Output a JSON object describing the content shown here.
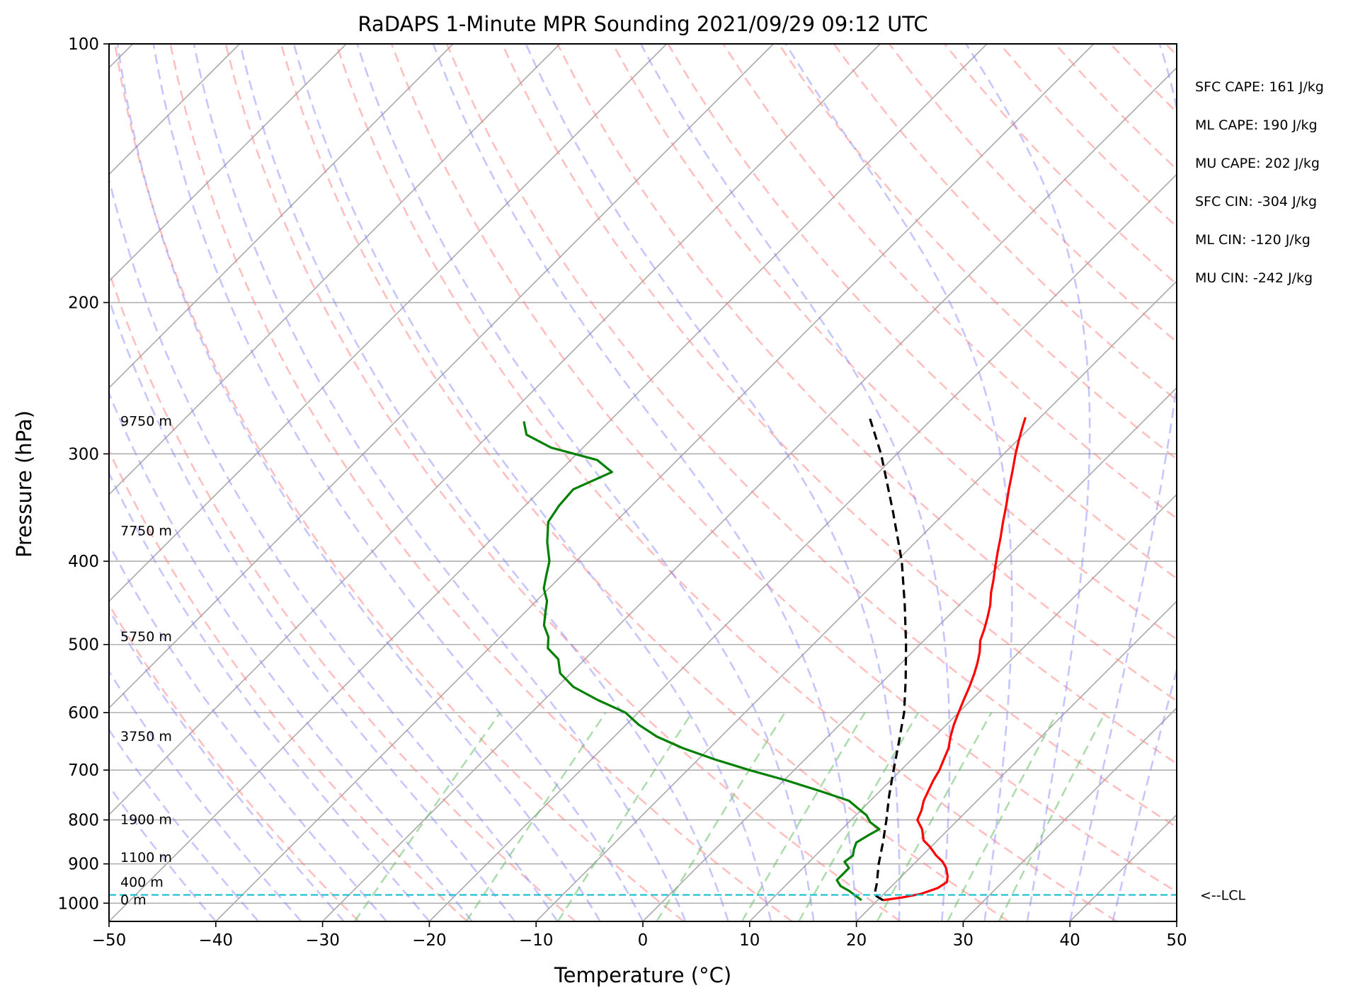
{
  "chart_data": {
    "type": "line",
    "title": "RaDAPS 1-Minute MPR Sounding 2021/09/29 09:12 UTC",
    "xlabel": "Temperature (°C)",
    "ylabel": "Pressure (hPa)",
    "xlim": [
      -50,
      50
    ],
    "ylim": [
      1050,
      100
    ],
    "y_scale": "log",
    "skew": "skew-T, isotherms slanted to the right",
    "grid": true,
    "x_ticks": [
      -50,
      -40,
      -30,
      -20,
      -10,
      0,
      10,
      20,
      30,
      40,
      50
    ],
    "x_tick_labels": [
      "−50",
      "−40",
      "−30",
      "−20",
      "−10",
      "0",
      "10",
      "20",
      "30",
      "40",
      "50"
    ],
    "y_ticks": [
      100,
      200,
      300,
      400,
      500,
      600,
      700,
      800,
      900,
      1000
    ],
    "y_tick_labels": [
      "100",
      "200",
      "300",
      "400",
      "500",
      "600",
      "700",
      "800",
      "900",
      "1000"
    ],
    "series": [
      {
        "role": "temperature",
        "color": "#ff0000",
        "p": [
          992,
          985,
          975,
          960,
          945,
          930,
          910,
          895,
          880,
          860,
          845,
          820,
          800,
          780,
          760,
          740,
          720,
          700,
          680,
          660,
          640,
          620,
          600,
          580,
          560,
          540,
          525,
          510,
          495,
          480,
          465,
          450,
          435,
          420,
          405,
          390,
          375,
          360,
          345,
          330,
          315,
          300,
          290,
          280,
          272
        ],
        "t": [
          20.5,
          22.0,
          23.5,
          24.5,
          24.8,
          24.3,
          23.4,
          22.5,
          21.3,
          19.9,
          18.7,
          17.5,
          16.2,
          15.7,
          15.0,
          14.5,
          14.0,
          13.6,
          13.0,
          12.4,
          11.5,
          10.7,
          10.0,
          9.3,
          8.6,
          7.8,
          7.1,
          6.3,
          5.3,
          4.6,
          3.8,
          2.9,
          1.8,
          0.8,
          -0.3,
          -1.4,
          -2.5,
          -3.7,
          -4.9,
          -6.2,
          -7.5,
          -8.9,
          -9.8,
          -10.7,
          -11.4
        ]
      },
      {
        "role": "dewpoint",
        "color": "#008000",
        "p": [
          992,
          980,
          968,
          955,
          940,
          925,
          910,
          895,
          880,
          865,
          850,
          835,
          820,
          805,
          790,
          775,
          760,
          740,
          720,
          700,
          680,
          660,
          640,
          620,
          600,
          580,
          560,
          540,
          520,
          505,
          490,
          475,
          460,
          445,
          430,
          415,
          400,
          380,
          360,
          345,
          330,
          315,
          305,
          295,
          285,
          275
        ],
        "t": [
          18.5,
          17.5,
          16.5,
          15.2,
          14.3,
          14.3,
          14.3,
          13.3,
          13.5,
          13.0,
          12.6,
          13.0,
          13.5,
          12.0,
          11.0,
          9.5,
          8.0,
          4.3,
          0.3,
          -4.2,
          -8.5,
          -12.5,
          -16.0,
          -18.8,
          -21.2,
          -25.0,
          -28.5,
          -31.0,
          -32.5,
          -34.5,
          -35.5,
          -37.0,
          -38.0,
          -39.0,
          -40.5,
          -41.5,
          -42.5,
          -44.5,
          -46.3,
          -46.8,
          -47.0,
          -45.0,
          -47.5,
          -53.0,
          -56.5,
          -58.0
        ]
      },
      {
        "role": "parcel",
        "color": "#000000",
        "dash": "dashed",
        "p": [
          992,
          978,
          950,
          900,
          850,
          800,
          750,
          700,
          650,
          600,
          550,
          500,
          450,
          400,
          350,
          300,
          272
        ],
        "t": [
          20.5,
          19.2,
          18.4,
          16.7,
          15.1,
          13.3,
          11.3,
          9.3,
          7.2,
          4.9,
          2.0,
          -1.3,
          -5.1,
          -9.5,
          -15.0,
          -21.5,
          -26.0
        ]
      }
    ],
    "lcl": {
      "pressure": 978,
      "label": "<--LCL",
      "color": "#17becf"
    },
    "height_labels": [
      {
        "pressure": 992,
        "label": "0 m"
      },
      {
        "pressure": 946,
        "label": "400 m"
      },
      {
        "pressure": 885,
        "label": "1100 m"
      },
      {
        "pressure": 800,
        "label": "1900 m"
      },
      {
        "pressure": 640,
        "label": "3750 m"
      },
      {
        "pressure": 490,
        "label": "5750 m"
      },
      {
        "pressure": 369,
        "label": "7750 m"
      },
      {
        "pressure": 275,
        "label": "9750 m"
      }
    ],
    "background_lines": {
      "isotherms": {
        "color": "#a9a9a9"
      },
      "dry_adiabats": {
        "color": "#ff7f7f",
        "dash": "dashed"
      },
      "moist_adiabats": {
        "color": "#8080ff",
        "dash": "dashed"
      },
      "mixing_ratio": {
        "color": "#6bbf6b",
        "dash": "dashed"
      }
    }
  },
  "parameters": [
    "SFC CAPE: 161 J/kg",
    "ML CAPE: 190 J/kg",
    "MU CAPE: 202 J/kg",
    "SFC CIN: -304 J/kg",
    "ML CIN: -120 J/kg",
    "MU CIN: -242 J/kg"
  ]
}
